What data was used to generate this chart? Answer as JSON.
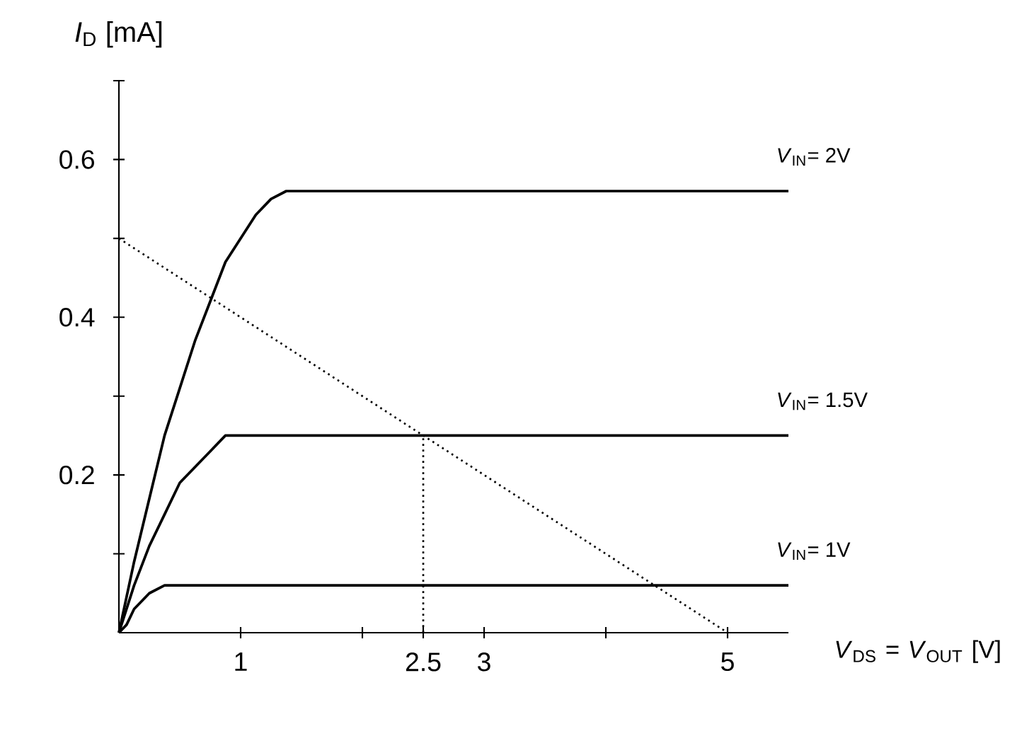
{
  "chart_data": {
    "type": "line",
    "xlabel": "*V*$_{DS}$ = *V*$_{OUT}$ [V]",
    "ylabel": "*I*$_{D}$ [mA]",
    "xlim": [
      0,
      5.5
    ],
    "ylim": [
      0,
      0.7
    ],
    "xticks": [
      1,
      {
        "value": 2,
        "label": null
      },
      2.5,
      3,
      {
        "value": 4,
        "label": null
      },
      5
    ],
    "yticks": [
      {
        "value": 0.1,
        "label": null
      },
      0.2,
      {
        "value": 0.3,
        "label": null
      },
      0.4,
      {
        "value": 0.5,
        "label": null
      },
      0.6,
      {
        "value": 0.7,
        "label": null
      }
    ],
    "grid": false,
    "series": [
      {
        "name": "*V*$_{IN}$= 2V",
        "color": "#000000",
        "line_style": "solid",
        "x": [
          0,
          0.125,
          0.25,
          0.375,
          0.5,
          0.625,
          0.75,
          0.875,
          1,
          1.125,
          1.25,
          1.375,
          1.5,
          5.5
        ],
        "values": [
          0,
          0.09,
          0.17,
          0.25,
          0.31,
          0.37,
          0.42,
          0.47,
          0.5,
          0.53,
          0.55,
          0.56,
          0.56,
          0.56
        ]
      },
      {
        "name": "*V*$_{IN}$= 1.5V",
        "color": "#000000",
        "line_style": "solid",
        "x": [
          0,
          0.125,
          0.25,
          0.375,
          0.5,
          0.625,
          0.75,
          0.875,
          1,
          5.5
        ],
        "values": [
          0,
          0.06,
          0.11,
          0.15,
          0.19,
          0.21,
          0.23,
          0.25,
          0.25,
          0.25
        ]
      },
      {
        "name": "*V*$_{IN}$= 1V",
        "color": "#000000",
        "line_style": "solid",
        "x": [
          0,
          0.0625,
          0.125,
          0.25,
          0.375,
          0.5,
          5.5
        ],
        "values": [
          0,
          0.01,
          0.03,
          0.05,
          0.06,
          0.06,
          0.06
        ]
      },
      {
        "color": "#000000",
        "line_style": "dotted",
        "x": [
          0,
          5
        ],
        "values": [
          0.5,
          0
        ]
      },
      {
        "color": "#000000",
        "line_style": "dotted",
        "x": [
          2.5,
          2.5
        ],
        "values": [
          0,
          0.25
        ]
      }
    ]
  }
}
